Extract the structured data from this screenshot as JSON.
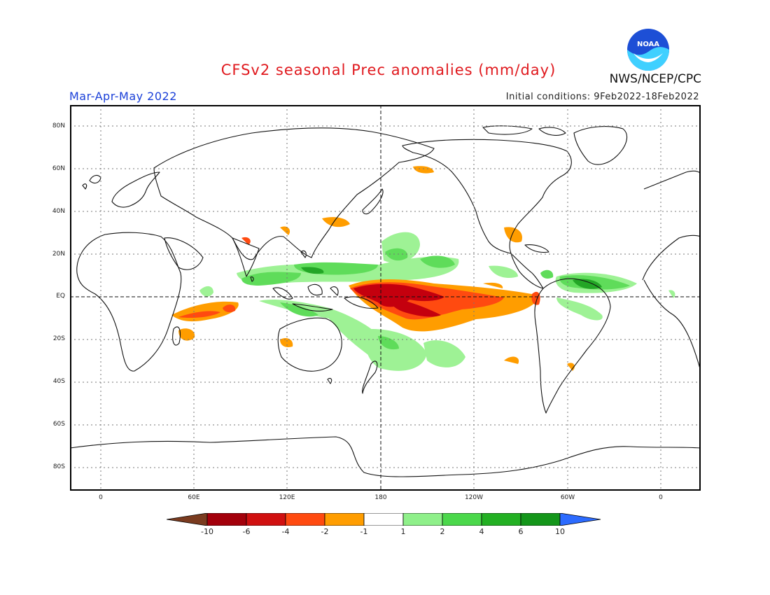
{
  "title": "CFSv2 seasonal Prec anomalies (mm/day)",
  "period": "Mar-Apr-May 2022",
  "initial_conditions": "Initial conditions: 9Feb2022-18Feb2022",
  "agency": "NWS/NCEP/CPC",
  "logo_text": "NOAA",
  "map": {
    "lat_labels": [
      "80N",
      "60N",
      "40N",
      "20N",
      "EQ",
      "20S",
      "40S",
      "60S",
      "80S"
    ],
    "lon_labels": [
      "0",
      "60E",
      "120E",
      "180",
      "120W",
      "60W",
      "0"
    ]
  },
  "colorbar": {
    "labels": [
      "-10",
      "-6",
      "-4",
      "-2",
      "-1",
      "1",
      "2",
      "4",
      "6",
      "10"
    ],
    "colors": [
      "#7a3b1f",
      "#a3000b",
      "#d01010",
      "#ff4a10",
      "#ff9d00",
      "#ffffff",
      "#8ff08a",
      "#4bd84b",
      "#23b023",
      "#14961a",
      "#2c6bff"
    ]
  },
  "colors": {
    "strong_wet": "#23a626",
    "wet": "#5fdc5a",
    "light_wet": "#9ef295",
    "dry": "#ff9d00",
    "dryer": "#ff4a10",
    "driest": "#c4000e"
  }
}
